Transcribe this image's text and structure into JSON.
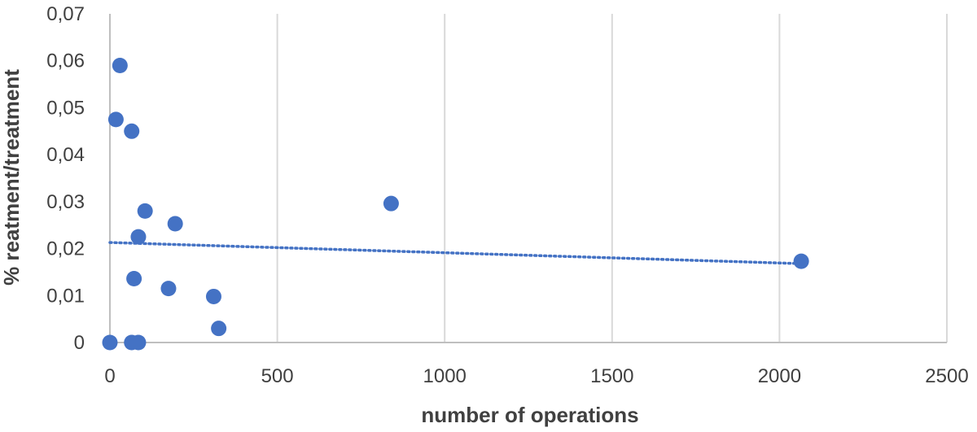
{
  "chart_data": {
    "type": "scatter",
    "xlabel": "number of operations",
    "ylabel": "% reatment/treatment",
    "xlim": [
      0,
      2500
    ],
    "ylim": [
      0,
      0.07
    ],
    "x_ticks": [
      0,
      500,
      1000,
      1500,
      2000,
      2500
    ],
    "y_ticks": [
      0,
      0.01,
      0.02,
      0.03,
      0.04,
      0.05,
      0.06,
      0.07
    ],
    "x_tick_labels": [
      "0",
      "500",
      "1000",
      "1500",
      "2000",
      "2500"
    ],
    "y_tick_labels": [
      "0",
      "0,01",
      "0,02",
      "0,03",
      "0,04",
      "0,05",
      "0,06",
      "0,07"
    ],
    "grid": "vertical",
    "series": [
      {
        "color": "#4472C4",
        "points": [
          {
            "x": 30,
            "y": 0.059
          },
          {
            "x": 18,
            "y": 0.0475
          },
          {
            "x": 65,
            "y": 0.045
          },
          {
            "x": 105,
            "y": 0.028
          },
          {
            "x": 195,
            "y": 0.0253
          },
          {
            "x": 85,
            "y": 0.0225
          },
          {
            "x": 72,
            "y": 0.0136
          },
          {
            "x": 175,
            "y": 0.0115
          },
          {
            "x": 310,
            "y": 0.0098
          },
          {
            "x": 325,
            "y": 0.003
          },
          {
            "x": 0,
            "y": 0.0
          },
          {
            "x": 65,
            "y": 0.0
          },
          {
            "x": 85,
            "y": 0.0
          },
          {
            "x": 840,
            "y": 0.0296
          },
          {
            "x": 2065,
            "y": 0.0173
          }
        ]
      }
    ],
    "trendline": {
      "type": "linear",
      "style": "dotted",
      "color": "#4472C4",
      "x_range": [
        0,
        2065
      ],
      "y_start": 0.0213,
      "y_end": 0.0168
    }
  }
}
